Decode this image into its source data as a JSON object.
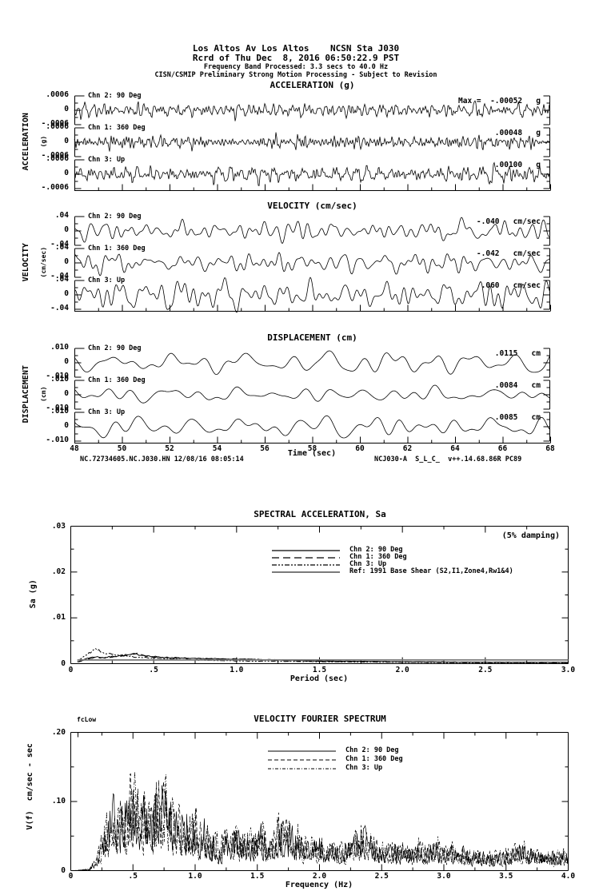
{
  "header": {
    "line1": "Los Altos Av Los Altos    NCSN Sta J030",
    "line2": "Rcrd of Thu Dec  8, 2016 06:50:22.9 PST",
    "line3": "Frequency Band Processed: 3.3 secs to 40.0 Hz",
    "line4": "CISN/CSMIP Preliminary Strong Motion Processing - Subject to Revision"
  },
  "panels": [
    {
      "title": "ACCELERATION (g)",
      "side_label": "ACCELERATION",
      "side_sub": "(g)",
      "y_tick_labels": [
        ".0006",
        "0",
        "-.0006"
      ],
      "strips": [
        {
          "channel": "Chn 2: 90 Deg",
          "max_label": "Max =  -.00052   g"
        },
        {
          "channel": "Chn 1: 360 Deg",
          "max_label": ".00048   g"
        },
        {
          "channel": "Chn 3: Up",
          "max_label": ".00100   g"
        }
      ]
    },
    {
      "title": "VELOCITY (cm/sec)",
      "side_label": "VELOCITY",
      "side_sub": "(cm/sec)",
      "y_tick_labels": [
        ".04",
        "0",
        "-.04"
      ],
      "strips": [
        {
          "channel": "Chn 2: 90 Deg",
          "max_label": "-.040   cm/sec"
        },
        {
          "channel": "Chn 1: 360 Deg",
          "max_label": "-.042   cm/sec"
        },
        {
          "channel": "Chn 3: Up",
          "max_label": ".060   cm/sec"
        }
      ]
    },
    {
      "title": "DISPLACEMENT (cm)",
      "side_label": "DISPLACEMENT",
      "side_sub": "(cm)",
      "y_tick_labels": [
        ".010",
        "0",
        "-.010"
      ],
      "strips": [
        {
          "channel": "Chn 2: 90 Deg",
          "max_label": ".0115   cm"
        },
        {
          "channel": "Chn 1: 360 Deg",
          "max_label": ".0084   cm"
        },
        {
          "channel": "Chn 3: Up",
          "max_label": ".0085   cm"
        }
      ]
    }
  ],
  "time_axis": {
    "tick_labels": [
      "48",
      "50",
      "52",
      "54",
      "56",
      "58",
      "60",
      "62",
      "64",
      "66",
      "68"
    ],
    "label": "Time (sec)"
  },
  "footer": {
    "left": "NC.72734605.NC.J030.HN 12/08/16 08:05:14",
    "right": "NCJ030-A  S_L_C_  v++.14.68.86R PC89"
  },
  "sa_chart": {
    "title": "SPECTRAL ACCELERATION, Sa",
    "annotation": "(5% damping)",
    "ylabel": "Sa (g)",
    "xlabel": "Period (sec)",
    "y_tick_labels": [
      ".03",
      ".02",
      ".01",
      "0"
    ],
    "x_tick_labels": [
      "0",
      ".5",
      "1.0",
      "1.5",
      "2.0",
      "2.5",
      "3.0"
    ],
    "legend": [
      "Chn 2: 90 Deg",
      "Chn 1: 360 Deg",
      "Chn 3: Up",
      "Ref: 1991 Base Shear (S2,I1,Zone4,Rw1&4)"
    ]
  },
  "fourier_chart": {
    "title": "VELOCITY FOURIER SPECTRUM",
    "corner_label": "fcLow",
    "ylabel": "V(f)  cm/sec - sec",
    "xlabel": "Frequency (Hz)",
    "y_tick_labels": [
      ".20",
      ".10",
      "0"
    ],
    "x_tick_labels": [
      "0",
      ".5",
      "1.0",
      "1.5",
      "2.0",
      "2.5",
      "3.0",
      "3.5",
      "4.0"
    ],
    "legend": [
      "Chn 2: 90 Deg",
      "Chn 1: 360 Deg",
      "Chn 3: Up"
    ]
  },
  "chart_data": [
    {
      "type": "line",
      "panel": "acceleration",
      "units": "g",
      "xlabel": "Time (sec)",
      "x_range": [
        48,
        68
      ],
      "y_scale": 0.0006,
      "series": [
        {
          "name": "Chn 2: 90 Deg",
          "record_max": -0.00052
        },
        {
          "name": "Chn 1: 360 Deg",
          "record_max": 0.00048
        },
        {
          "name": "Chn 3: Up",
          "record_max": 0.001
        }
      ],
      "window_peak_frac": [
        0.68,
        0.62,
        0.72
      ]
    },
    {
      "type": "line",
      "panel": "velocity",
      "units": "cm/sec",
      "xlabel": "Time (sec)",
      "x_range": [
        48,
        68
      ],
      "y_scale": 0.04,
      "series": [
        {
          "name": "Chn 2: 90 Deg",
          "record_max": -0.04
        },
        {
          "name": "Chn 1: 360 Deg",
          "record_max": -0.042
        },
        {
          "name": "Chn 3: Up",
          "record_max": 0.06
        }
      ],
      "window_peak_frac": [
        0.85,
        0.8,
        1.1
      ]
    },
    {
      "type": "line",
      "panel": "displacement",
      "units": "cm",
      "xlabel": "Time (sec)",
      "x_range": [
        48,
        68
      ],
      "y_scale": 0.01,
      "series": [
        {
          "name": "Chn 2: 90 Deg",
          "record_max": 0.0115
        },
        {
          "name": "Chn 1: 360 Deg",
          "record_max": 0.0084
        },
        {
          "name": "Chn 3: Up",
          "record_max": 0.0085
        }
      ],
      "window_peak_frac": [
        0.75,
        0.6,
        0.7
      ]
    },
    {
      "type": "line",
      "title": "SPECTRAL ACCELERATION, Sa",
      "xlabel": "Period (sec)",
      "ylabel": "Sa (g)",
      "xlim": [
        0,
        3.0
      ],
      "ylim": [
        0,
        0.03
      ],
      "damping": "5%",
      "x": [
        0.05,
        0.1,
        0.15,
        0.2,
        0.3,
        0.4,
        0.5,
        0.7,
        1.0,
        1.5,
        2.0,
        2.5,
        3.0
      ],
      "series": [
        {
          "name": "Chn 2: 90 Deg",
          "values": [
            0.0005,
            0.0012,
            0.0015,
            0.0013,
            0.0018,
            0.002,
            0.0015,
            0.0011,
            0.001,
            0.0006,
            0.0004,
            0.0003,
            0.0003
          ]
        },
        {
          "name": "Chn 1: 360 Deg",
          "values": [
            0.0004,
            0.001,
            0.0014,
            0.0012,
            0.0016,
            0.0022,
            0.0014,
            0.0012,
            0.0009,
            0.0005,
            0.0004,
            0.0003,
            0.0002
          ]
        },
        {
          "name": "Chn 3: Up",
          "values": [
            0.0008,
            0.002,
            0.0032,
            0.0022,
            0.0018,
            0.0014,
            0.0012,
            0.0008,
            0.0006,
            0.0004,
            0.0003,
            0.0002,
            0.0002
          ]
        },
        {
          "name": "Ref: 1991 Base Shear (S2,I1,Zone4,Rw1&4)",
          "values": [
            0.0008,
            0.0008,
            0.0008,
            0.0008,
            0.0008,
            0.0008,
            0.0008,
            0.0008,
            0.0008,
            0.0008,
            0.0008,
            0.0008,
            0.0008
          ]
        }
      ]
    },
    {
      "type": "line",
      "title": "VELOCITY FOURIER SPECTRUM",
      "xlabel": "Frequency (Hz)",
      "ylabel": "V(f) cm/sec - sec",
      "xlim": [
        0,
        4.0
      ],
      "ylim": [
        0,
        0.2
      ],
      "envelope_x": [
        0,
        0.15,
        0.2,
        0.25,
        0.3,
        0.35,
        0.4,
        0.45,
        0.5,
        0.55,
        0.6,
        0.65,
        0.7,
        0.75,
        0.8,
        0.9,
        1.0,
        1.1,
        1.2,
        1.3,
        1.4,
        1.5,
        1.6,
        1.7,
        1.8,
        2.0,
        2.2,
        2.35,
        2.5,
        2.7,
        2.9,
        3.0,
        3.2,
        3.4,
        3.6,
        3.8,
        4.0
      ],
      "envelope_v": [
        0,
        0.003,
        0.02,
        0.06,
        0.1,
        0.14,
        0.12,
        0.1,
        0.17,
        0.11,
        0.13,
        0.1,
        0.16,
        0.17,
        0.13,
        0.09,
        0.1,
        0.07,
        0.06,
        0.07,
        0.06,
        0.08,
        0.06,
        0.09,
        0.07,
        0.05,
        0.05,
        0.07,
        0.045,
        0.04,
        0.05,
        0.045,
        0.035,
        0.03,
        0.045,
        0.03,
        0.035
      ],
      "series": [
        "Chn 2: 90 Deg",
        "Chn 1: 360 Deg",
        "Chn 3: Up"
      ]
    }
  ]
}
